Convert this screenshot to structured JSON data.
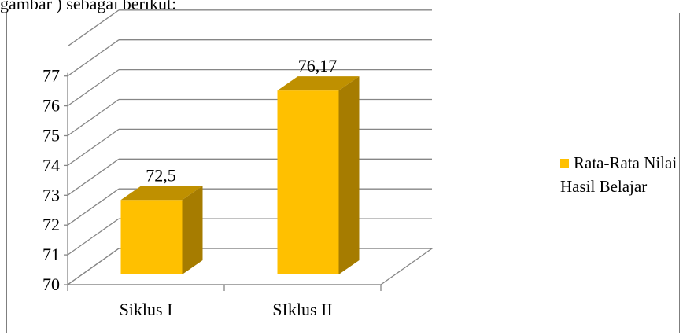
{
  "caption_fragment": "gambar ) sebagai berikut:",
  "chart_data": {
    "type": "bar",
    "style": "3d-column",
    "categories": [
      "Siklus I",
      "SIklus II"
    ],
    "series": [
      {
        "name": "Rata-Rata Nilai Hasil Belajar",
        "values": [
          72.5,
          76.17
        ],
        "labels": [
          "72,5",
          "76,17"
        ],
        "color": "#FFC000"
      }
    ],
    "ylim": [
      70,
      78
    ],
    "yticks": [
      "70",
      "71",
      "72",
      "73",
      "74",
      "75",
      "76",
      "77"
    ],
    "grid": true,
    "legend_position": "right",
    "title": "",
    "xlabel": "",
    "ylabel": ""
  }
}
